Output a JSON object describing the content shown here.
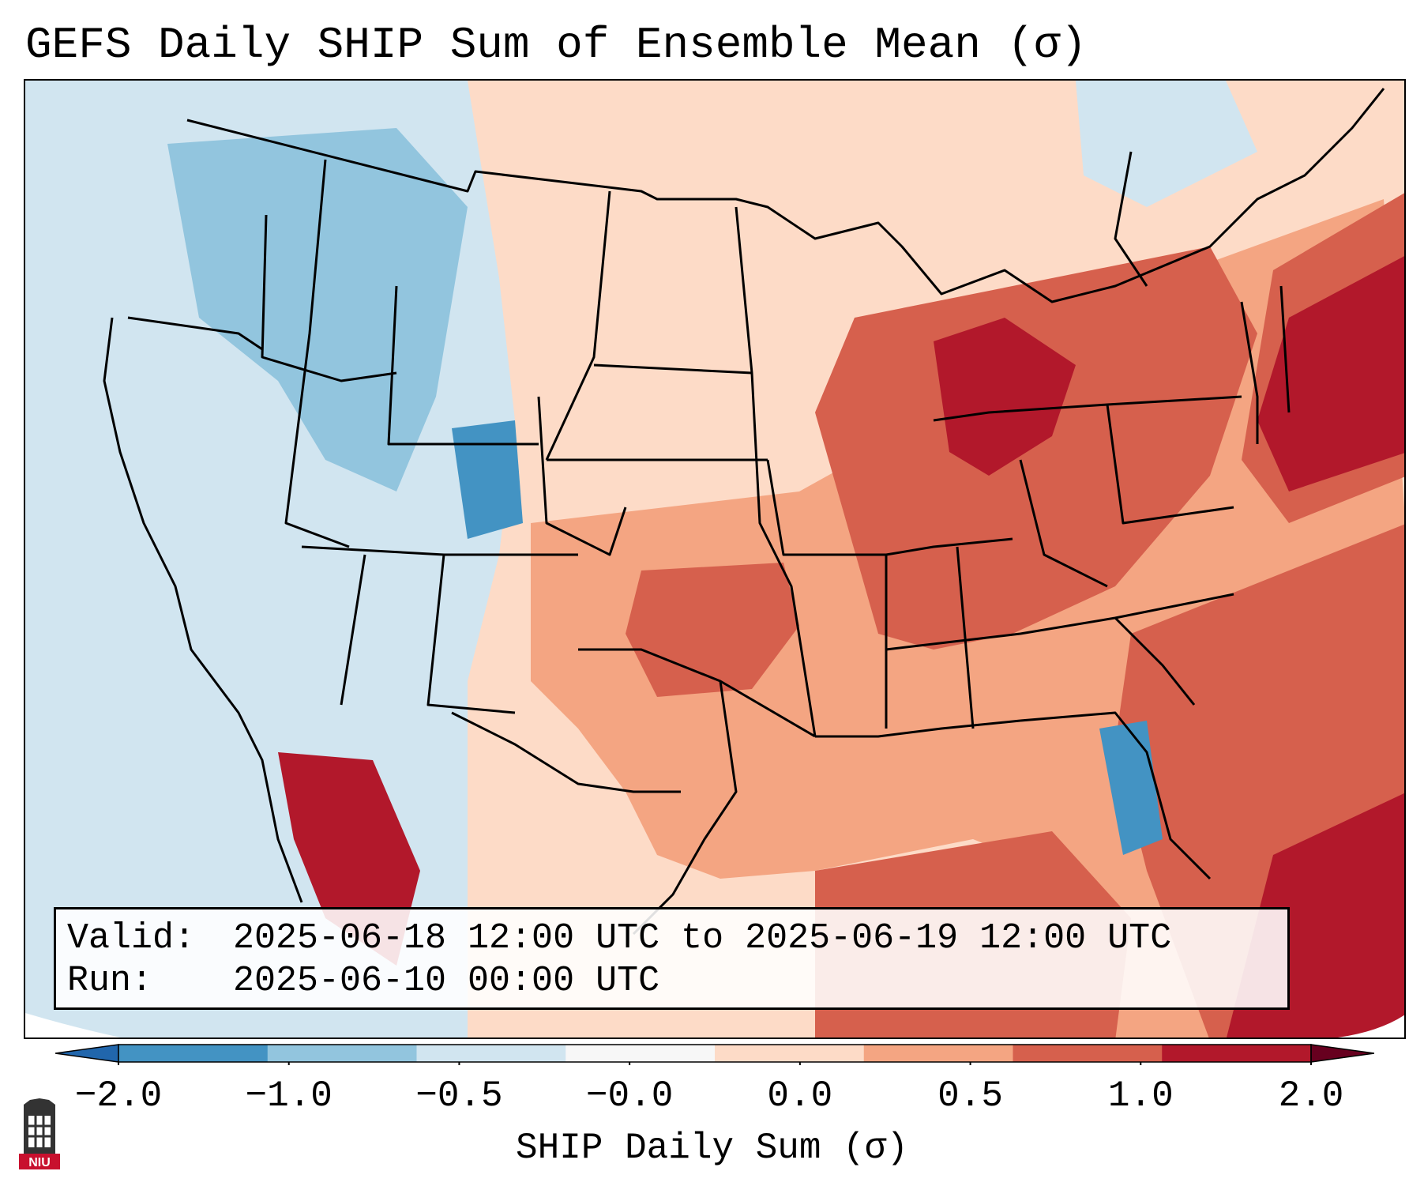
{
  "title": "GEFS Daily SHIP Sum of Ensemble Mean (σ)",
  "info": {
    "valid_label": "Valid:",
    "valid_value": "2025-06-18 12:00 UTC to 2025-06-19 12:00 UTC",
    "run_label": "Run:",
    "run_value": "2025-06-10 00:00 UTC"
  },
  "colorbar": {
    "label": "SHIP Daily Sum (σ)",
    "ticks": [
      "−2.0",
      "−1.0",
      "−0.5",
      "−0.0",
      "0.0",
      "0.5",
      "1.0",
      "2.0"
    ],
    "colors": [
      "#4393c3",
      "#92c5de",
      "#d1e5f0",
      "#f7f7f7",
      "#fddbc7",
      "#f4a582",
      "#d6604d",
      "#b2182b"
    ],
    "under_color": "#2166ac",
    "over_color": "#67001f"
  },
  "logo": {
    "text": "NIU",
    "color": "#c8102e"
  },
  "colors": {
    "ocean_west": "#d1e5f0",
    "land_east": "#f4a582",
    "border": "#000000"
  }
}
